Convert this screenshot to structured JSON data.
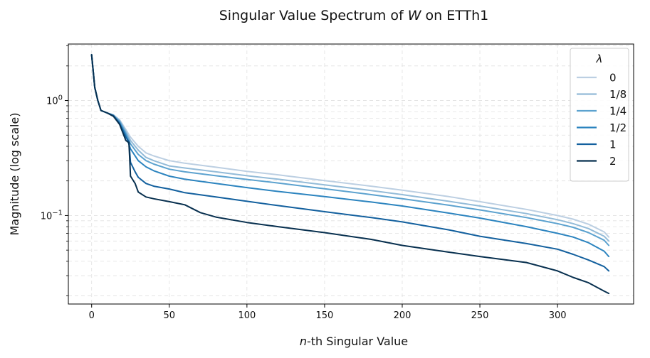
{
  "chart_data": {
    "type": "line",
    "title_parts": [
      "Singular Value Spectrum of ",
      "W",
      " on ETTh1"
    ],
    "xlabel_parts": [
      "n",
      "-th Singular Value"
    ],
    "ylabel": "Magnitude (log scale)",
    "yscale": "log",
    "xlim": [
      -15,
      349
    ],
    "ylim": [
      0.017,
      3.1
    ],
    "x_ticks": [
      0,
      50,
      100,
      150,
      200,
      250,
      300
    ],
    "x_tick_labels": [
      "0",
      "50",
      "100",
      "150",
      "200",
      "250",
      "300"
    ],
    "y_ticks": [
      1,
      0.1
    ],
    "y_tick_labels": [
      {
        "base": "10",
        "exp": "0"
      },
      {
        "base": "10",
        "exp": "−1"
      }
    ],
    "grid": true,
    "legend": {
      "title": "λ",
      "position": "top-right"
    },
    "series": [
      {
        "name": "0",
        "color": "#bccfe2",
        "x": [
          0,
          2,
          4,
          6,
          10,
          14,
          18,
          22,
          25,
          30,
          35,
          40,
          50,
          60,
          80,
          100,
          120,
          150,
          180,
          200,
          230,
          250,
          280,
          300,
          310,
          320,
          330,
          333
        ],
        "y": [
          2.5,
          1.3,
          1.0,
          0.82,
          0.78,
          0.75,
          0.68,
          0.56,
          0.48,
          0.4,
          0.35,
          0.33,
          0.3,
          0.285,
          0.263,
          0.242,
          0.226,
          0.201,
          0.18,
          0.166,
          0.146,
          0.132,
          0.113,
          0.1,
          0.093,
          0.084,
          0.072,
          0.065
        ]
      },
      {
        "name": "1/8",
        "color": "#93bbd8",
        "x": [
          0,
          2,
          4,
          6,
          10,
          14,
          18,
          22,
          25,
          30,
          35,
          40,
          50,
          60,
          80,
          100,
          120,
          150,
          180,
          200,
          230,
          250,
          280,
          300,
          310,
          320,
          330,
          333
        ],
        "y": [
          2.5,
          1.3,
          1.0,
          0.82,
          0.78,
          0.75,
          0.67,
          0.54,
          0.45,
          0.37,
          0.32,
          0.3,
          0.27,
          0.259,
          0.24,
          0.222,
          0.207,
          0.185,
          0.165,
          0.152,
          0.133,
          0.121,
          0.104,
          0.092,
          0.085,
          0.077,
          0.066,
          0.06
        ]
      },
      {
        "name": "1/4",
        "color": "#5ca2cf",
        "x": [
          0,
          2,
          4,
          6,
          10,
          14,
          18,
          22,
          25,
          30,
          35,
          40,
          50,
          60,
          80,
          100,
          120,
          150,
          180,
          200,
          230,
          250,
          280,
          300,
          310,
          320,
          330,
          333
        ],
        "y": [
          2.5,
          1.3,
          1.0,
          0.82,
          0.78,
          0.74,
          0.66,
          0.52,
          0.42,
          0.34,
          0.3,
          0.28,
          0.253,
          0.24,
          0.222,
          0.206,
          0.192,
          0.171,
          0.152,
          0.14,
          0.123,
          0.112,
          0.096,
          0.085,
          0.079,
          0.071,
          0.061,
          0.055
        ]
      },
      {
        "name": "1/2",
        "color": "#2c84bf",
        "x": [
          0,
          2,
          4,
          6,
          10,
          14,
          18,
          22,
          25,
          30,
          35,
          40,
          50,
          60,
          80,
          100,
          120,
          150,
          180,
          200,
          230,
          250,
          280,
          300,
          310,
          320,
          330,
          333
        ],
        "y": [
          2.5,
          1.3,
          1.0,
          0.82,
          0.78,
          0.74,
          0.64,
          0.5,
          0.38,
          0.3,
          0.265,
          0.245,
          0.22,
          0.207,
          0.19,
          0.175,
          0.162,
          0.146,
          0.131,
          0.121,
          0.105,
          0.095,
          0.08,
          0.07,
          0.065,
          0.058,
          0.049,
          0.044
        ]
      },
      {
        "name": "1",
        "color": "#13609e",
        "x": [
          0,
          2,
          4,
          6,
          10,
          14,
          18,
          22,
          24,
          25,
          28,
          30,
          35,
          40,
          50,
          60,
          80,
          100,
          120,
          150,
          180,
          200,
          230,
          250,
          280,
          300,
          310,
          320,
          330,
          333
        ],
        "y": [
          2.5,
          1.3,
          1.0,
          0.82,
          0.78,
          0.74,
          0.63,
          0.48,
          0.44,
          0.29,
          0.24,
          0.215,
          0.19,
          0.18,
          0.17,
          0.158,
          0.145,
          0.133,
          0.122,
          0.108,
          0.096,
          0.088,
          0.075,
          0.066,
          0.057,
          0.051,
          0.046,
          0.041,
          0.036,
          0.033
        ]
      },
      {
        "name": "2",
        "color": "#08304f",
        "x": [
          0,
          2,
          4,
          6,
          10,
          14,
          18,
          22,
          24,
          25,
          28,
          30,
          35,
          40,
          50,
          60,
          70,
          80,
          100,
          120,
          150,
          180,
          200,
          230,
          250,
          280,
          300,
          310,
          320,
          330,
          333
        ],
        "y": [
          2.5,
          1.3,
          1.0,
          0.82,
          0.78,
          0.73,
          0.62,
          0.45,
          0.43,
          0.22,
          0.19,
          0.16,
          0.145,
          0.14,
          0.132,
          0.124,
          0.106,
          0.097,
          0.087,
          0.08,
          0.071,
          0.062,
          0.055,
          0.048,
          0.044,
          0.039,
          0.033,
          0.029,
          0.026,
          0.022,
          0.021
        ]
      }
    ]
  }
}
